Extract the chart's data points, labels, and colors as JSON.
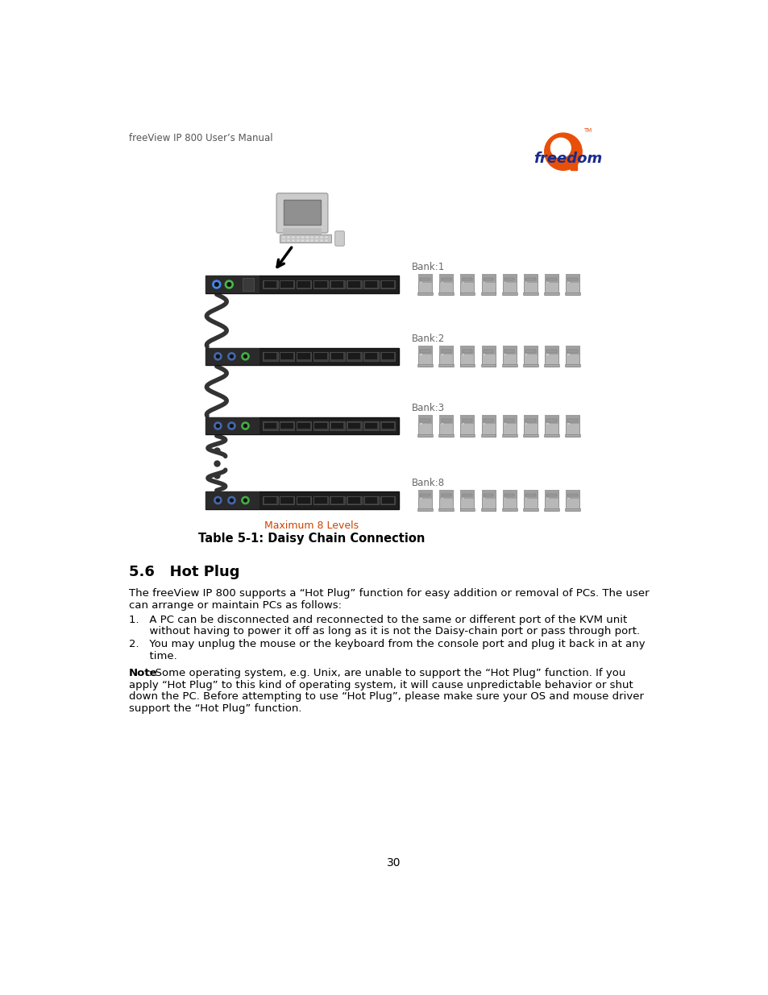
{
  "header_text": "freeView IP 800 User’s Manual",
  "page_number": "30",
  "table_caption_line1": "Maximum 8 Levels",
  "table_caption_line2": "Table 5-1: Daisy Chain Connection",
  "section_heading": "5.6   Hot Plug",
  "bank_labels": [
    "Bank:1",
    "Bank:2",
    "Bank:3",
    "Bank:8"
  ],
  "bg_color": "#ffffff",
  "text_color": "#000000",
  "header_color": "#555555",
  "kvm_bar_color": "#222222",
  "pc_body_color": "#b0b0b0",
  "pc_dark_color": "#888888",
  "bank_label_color": "#666666",
  "caption_color1": "#cc4400",
  "logo_orange": "#e8500a",
  "logo_blue": "#1a2b8b",
  "cable_color": "#333333",
  "note_bold": "Note",
  "note_rest": ": Some operating system, e.g. Unix, are unable to support the “Hot Plug” function. If you",
  "note_line2": "apply “Hot Plug” to this kind of operating system, it will cause unpredictable behavior or shut",
  "note_line3": "down the PC. Before attempting to use “Hot Plug”, please make sure your OS and mouse driver",
  "note_line4": "support the “Hot Plug” function.",
  "para1_line1": "The freeView IP 800 supports a “Hot Plug” function for easy addition or removal of PCs. The user",
  "para1_line2": "can arrange or maintain PCs as follows:",
  "list1_line1": "1.   A PC can be disconnected and reconnected to the same or different port of the KVM unit",
  "list1_line2": "      without having to power it off as long as it is not the Daisy-chain port or pass through port.",
  "list2_line1": "2.   You may unplug the mouse or the keyboard from the console port and plug it back in at any",
  "list2_line2": "      time."
}
